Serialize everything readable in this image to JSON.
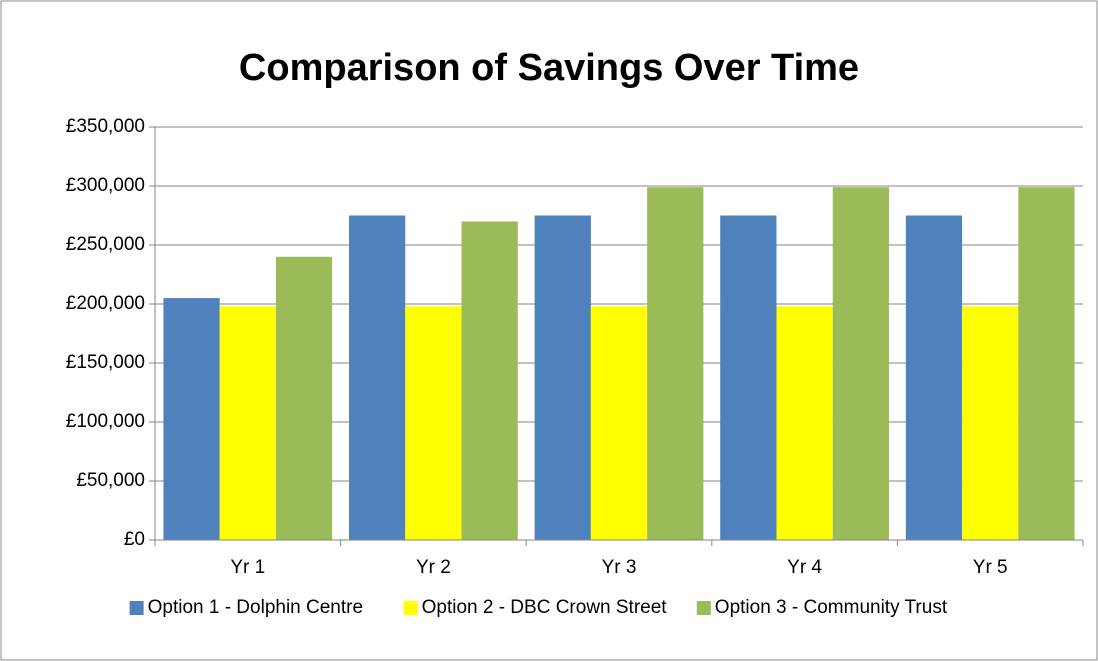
{
  "chart_data": {
    "type": "bar",
    "title": "Comparison of Savings Over Time",
    "categories": [
      "Yr 1",
      "Yr 2",
      "Yr 3",
      "Yr 4",
      "Yr 5"
    ],
    "series": [
      {
        "name": "Option 1 - Dolphin Centre",
        "color": "#4f81bd",
        "values": [
          205000,
          275000,
          275000,
          275000,
          275000
        ]
      },
      {
        "name": "Option 2 - DBC Crown Street",
        "color": "#ffff00",
        "values": [
          198000,
          198000,
          198000,
          198000,
          198000
        ]
      },
      {
        "name": "Option 3 - Community Trust",
        "color": "#9bbb59",
        "values": [
          240000,
          270000,
          299000,
          299000,
          299000
        ]
      }
    ],
    "ylim": [
      0,
      350000
    ],
    "yticks": [
      {
        "value": 0,
        "label": "£0"
      },
      {
        "value": 50000,
        "label": "£50,000"
      },
      {
        "value": 100000,
        "label": "£100,000"
      },
      {
        "value": 150000,
        "label": "£150,000"
      },
      {
        "value": 200000,
        "label": "£200,000"
      },
      {
        "value": 250000,
        "label": "£250,000"
      },
      {
        "value": 300000,
        "label": "£300,000"
      },
      {
        "value": 350000,
        "label": "£350,000"
      }
    ],
    "grid": true,
    "legend": "bottom"
  }
}
